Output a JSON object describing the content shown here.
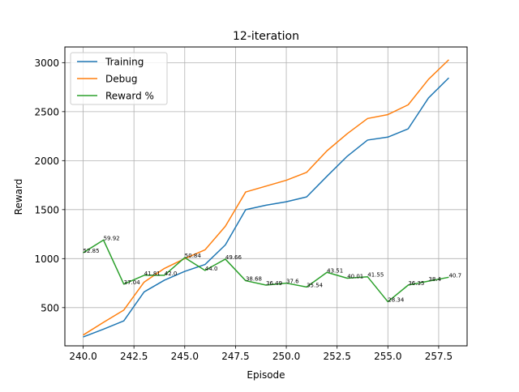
{
  "chart_data": {
    "type": "line",
    "title": "12-iteration",
    "xlabel": "Episode",
    "ylabel": "Reward",
    "xlim": [
      239.1,
      258.9
    ],
    "ylim": [
      110,
      3160
    ],
    "xticks": [
      240.0,
      242.5,
      245.0,
      247.5,
      250.0,
      252.5,
      255.0,
      257.5
    ],
    "xtick_labels": [
      "240.0",
      "242.5",
      "245.0",
      "247.5",
      "250.0",
      "252.5",
      "255.0",
      "257.5"
    ],
    "yticks": [
      500,
      1000,
      1500,
      2000,
      2500,
      3000
    ],
    "ytick_labels": [
      "500",
      "1000",
      "1500",
      "2000",
      "2500",
      "3000"
    ],
    "grid": true,
    "legend_position": "top-left",
    "x": [
      240,
      241,
      242,
      243,
      244,
      245,
      246,
      247,
      248,
      249,
      250,
      251,
      252,
      253,
      254,
      255,
      256,
      257,
      258
    ],
    "series": [
      {
        "name": "Training",
        "color": "#1f77b4",
        "values": [
          200,
          280,
          365,
          660,
          780,
          870,
          940,
          1140,
          1500,
          1545,
          1580,
          1630,
          1840,
          2045,
          2210,
          2240,
          2325,
          2640,
          2845
        ]
      },
      {
        "name": "Debug",
        "color": "#ff7f0e",
        "values": [
          220,
          350,
          475,
          760,
          900,
          1000,
          1090,
          1330,
          1680,
          1740,
          1800,
          1880,
          2100,
          2275,
          2430,
          2470,
          2570,
          2830,
          3030
        ]
      },
      {
        "name": "Reward %",
        "color": "#2ca02c",
        "values": [
          1060,
          1190,
          740,
          830,
          830,
          1010,
          880,
          995,
          775,
          730,
          750,
          710,
          860,
          800,
          815,
          560,
          730,
          770,
          810
        ],
        "labels": [
          "52.85",
          "59.92",
          "37.04",
          "41.81",
          "42.0",
          "50.84",
          "44.0",
          "49.66",
          "38.68",
          "36.49",
          "37.6",
          "35.54",
          "43.51",
          "40.01",
          "41.55",
          "28.34",
          "36.35",
          "38.4",
          "40.7"
        ]
      }
    ]
  }
}
